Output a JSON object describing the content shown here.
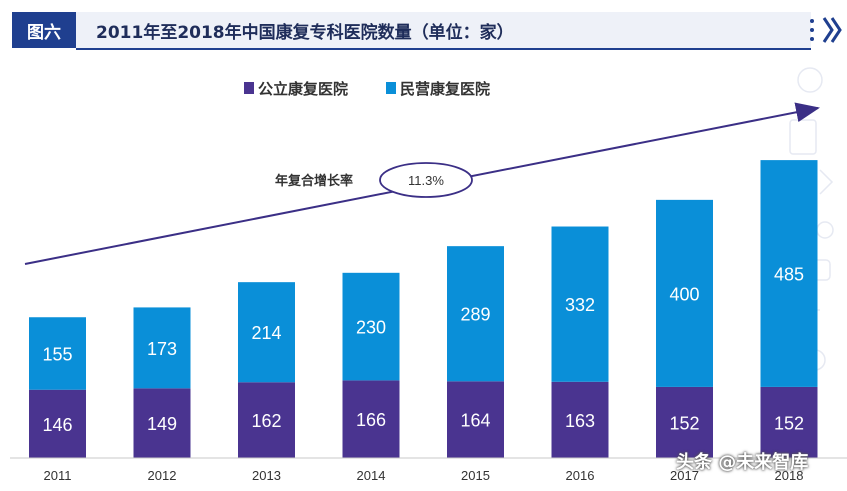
{
  "header": {
    "figure_tag": "图六",
    "title": "2011年至2018年中国康复专科医院数量（单位：家）"
  },
  "annotation": {
    "cagr_label": "年复合增长率",
    "cagr_value": "11.3%"
  },
  "watermark": "头条 @未来智库",
  "colors": {
    "public": "#4a3490",
    "private": "#0a8fd8",
    "header_blue": "#1f3f8f",
    "arrow": "#3b2f86"
  },
  "icons": [
    "menu-dots-icon",
    "chevron-right-icon",
    "background-medical-line-icons"
  ],
  "chart_data": {
    "type": "bar",
    "stacked": true,
    "title": "2011年至2018年中国康复专科医院数量（单位：家）",
    "categories": [
      "2011",
      "2012",
      "2013",
      "2014",
      "2015",
      "2016",
      "2017",
      "2018"
    ],
    "series": [
      {
        "name": "公立康复医院",
        "values": [
          146,
          149,
          162,
          166,
          164,
          163,
          152,
          152
        ],
        "color": "#4a3490"
      },
      {
        "name": "民营康复医院",
        "values": [
          155,
          173,
          214,
          230,
          289,
          332,
          400,
          485
        ],
        "color": "#0a8fd8"
      }
    ],
    "ylim": [
      0,
      680
    ],
    "grid": false,
    "legend": "top-center"
  }
}
